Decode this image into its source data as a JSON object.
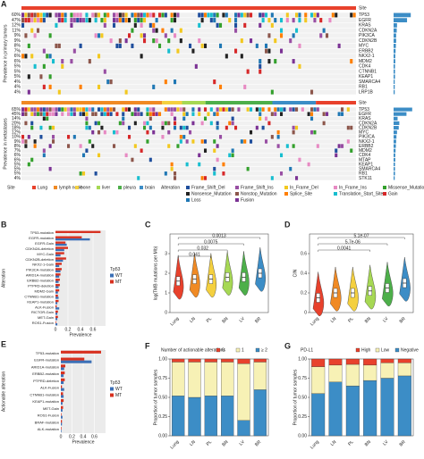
{
  "chart_data": [
    {
      "panel": "A",
      "type": "oncoprint",
      "track_label": "Site",
      "primary_label": "Prevalence in primary tumors",
      "metastasis_label": "Prevalence in metastases",
      "primary": {
        "genes": [
          "TP53",
          "EGFR",
          "KRAS",
          "CDKN2A",
          "PIK3CA",
          "CDKN2B",
          "MYC",
          "ERBB2",
          "NKX2-1",
          "MDM2",
          "CDK4",
          "CTNNB1",
          "KEAP1",
          "SMARCA4",
          "RB1",
          "LRP1B"
        ],
        "values": [
          60,
          47,
          12,
          11,
          9,
          9,
          8,
          7,
          6,
          6,
          5,
          5,
          5,
          4,
          4,
          4
        ],
        "value_labels": [
          "60%",
          "47%",
          "12%",
          "11%",
          "9%",
          "9%",
          "8%",
          "7%",
          "6%",
          "6%",
          "5%",
          "5%",
          "5%",
          "4%",
          "4%",
          "4%"
        ]
      },
      "metastasis": {
        "genes": [
          "TP53",
          "EGFR",
          "KRAS",
          "CDKN2A",
          "CDKN2B",
          "MYC",
          "PIK3CA",
          "NKX2-1",
          "ERBB2",
          "MDM2",
          "CDK4",
          "MTAP",
          "KEAP1",
          "SMARCA4",
          "RB1",
          "STK11"
        ],
        "values": [
          65,
          45,
          14,
          20,
          18,
          12,
          10,
          9,
          8,
          7,
          6,
          6,
          5,
          5,
          5,
          4
        ],
        "value_labels": [
          "65%",
          "45%",
          "14%",
          "20%",
          "18%",
          "12%",
          "10%",
          "9%",
          "8%",
          "7%",
          "6%",
          "6%",
          "5%",
          "5%",
          "5%",
          "4%"
        ]
      },
      "site_legend": {
        "title": "Site",
        "items": [
          {
            "name": "Lung",
            "color": "#e8412c"
          },
          {
            "name": "lymph node",
            "color": "#f08a24"
          },
          {
            "name": "bone",
            "color": "#f4d03f"
          },
          {
            "name": "liver",
            "color": "#a6d854"
          },
          {
            "name": "pleura",
            "color": "#4daf4a"
          },
          {
            "name": "brain",
            "color": "#3c8dc6"
          }
        ]
      },
      "alteration_legend": {
        "title": "Alteration",
        "items": [
          {
            "name": "Frame_Shift_Del",
            "color": "#1f4e9c"
          },
          {
            "name": "Frame_Shift_Ins",
            "color": "#984ea3"
          },
          {
            "name": "In_Frame_Del",
            "color": "#f2c81f"
          },
          {
            "name": "In_Frame_Ins",
            "color": "#e78ac3"
          },
          {
            "name": "Missense_Mutation",
            "color": "#33a02c"
          },
          {
            "name": "Nonsense_Mutation",
            "color": "#222222"
          },
          {
            "name": "Nonstop_Mutation",
            "color": "#8c564b"
          },
          {
            "name": "Splice_Site",
            "color": "#ff7f00"
          },
          {
            "name": "Translation_Start_Site",
            "color": "#17becf"
          },
          {
            "name": "Gain",
            "color": "#d62728"
          },
          {
            "name": "Loss",
            "color": "#1f77b4"
          },
          {
            "name": "Fusion",
            "color": "#7b3294"
          }
        ]
      }
    },
    {
      "panel": "B",
      "type": "hbar",
      "ylabel": "Alteration",
      "xlabel": "Prevalence",
      "legend_title": "Tp53",
      "categories": [
        "TP53-mutation",
        "EGFR-mutation",
        "EGFR-Gain",
        "CDKN2A-deletion",
        "MYC-Gain",
        "CDKN2B-deletion",
        "NKX2-1-Gain",
        "PIK3CA-mutation",
        "ARID1A-mutation",
        "ERBB2-mutation",
        "PTPRD-deletion",
        "MDM2-Gain",
        "CTNNB1-mutation",
        "KEAP1-mutation",
        "ALK-Fusion",
        "RICTOR-Gain",
        "MET-Gain",
        "ROS1-Fusion"
      ],
      "series": [
        {
          "name": "WT",
          "color": "#3b6fb6",
          "values": [
            0,
            0.55,
            0.18,
            0.14,
            0.08,
            0.12,
            0.06,
            0.08,
            0.06,
            0.05,
            0.05,
            0.04,
            0.05,
            0.03,
            0.06,
            0.03,
            0.03,
            0.03
          ]
        },
        {
          "name": "MT",
          "color": "#d7301f",
          "values": [
            0.72,
            0.42,
            0.16,
            0.2,
            0.14,
            0.17,
            0.1,
            0.1,
            0.08,
            0.07,
            0.07,
            0.06,
            0.04,
            0.05,
            0.02,
            0.04,
            0.04,
            0.01
          ]
        }
      ],
      "xlim": [
        0,
        0.8
      ],
      "xticks": [
        0,
        0.2,
        0.4,
        0.6
      ]
    },
    {
      "panel": "C",
      "type": "violin",
      "ylabel": "log(TMB mutations per Mb)",
      "categories": [
        "Lung",
        "LN",
        "PL",
        "BN",
        "LV",
        "BR"
      ],
      "colors": [
        "#e8412c",
        "#f08a24",
        "#f4d03f",
        "#a6d854",
        "#4daf4a",
        "#3c8dc6"
      ],
      "values": [
        1.6,
        1.7,
        1.7,
        1.8,
        1.8,
        2.0
      ],
      "ylim": [
        0,
        4
      ],
      "yticks": [
        0,
        1,
        2,
        3
      ],
      "annotations": [
        "0.0013",
        "0.0075",
        "0.032",
        "0.041"
      ]
    },
    {
      "panel": "D",
      "type": "violin",
      "ylabel": "CIN",
      "categories": [
        "Lung",
        "LN",
        "PL",
        "BN",
        "LV",
        "BR"
      ],
      "colors": [
        "#e8412c",
        "#f08a24",
        "#f4d03f",
        "#a6d854",
        "#4daf4a",
        "#3c8dc6"
      ],
      "values": [
        0.15,
        0.2,
        0.2,
        0.22,
        0.25,
        0.3
      ],
      "ylim": [
        0,
        0.8
      ],
      "yticks": [
        0,
        0.2,
        0.4,
        0.6
      ],
      "annotations": [
        "5.1e-07",
        "5.7e-06",
        "0.0041"
      ]
    },
    {
      "panel": "E",
      "type": "hbar",
      "ylabel": "Actionable alteration",
      "xlabel": "Prevalence",
      "legend_title": "Tp53",
      "categories": [
        "TP53-mutation",
        "EGFR-mutation",
        "ARID1A-mutation",
        "ERBB2-mutation",
        "PTPRD-deletion",
        "ALK-Fusion",
        "CTNNB1-mutation",
        "KEAP1-mutation",
        "MET-Gain",
        "ROS1-Fusion",
        "BRAF-mutation",
        "ALK-mutation"
      ],
      "series": [
        {
          "name": "WT",
          "color": "#3b6fb6",
          "values": [
            0,
            0.55,
            0.06,
            0.05,
            0.05,
            0.06,
            0.05,
            0.03,
            0.03,
            0.03,
            0.02,
            0.01
          ]
        },
        {
          "name": "MT",
          "color": "#d7301f",
          "values": [
            0.72,
            0.42,
            0.08,
            0.07,
            0.07,
            0.02,
            0.04,
            0.05,
            0.04,
            0.01,
            0.02,
            0.01
          ]
        }
      ],
      "xlim": [
        0,
        0.8
      ],
      "xticks": [
        0,
        0.2,
        0.4,
        0.6
      ]
    },
    {
      "panel": "F",
      "type": "stacked",
      "ylabel": "Proportion of tumor samples",
      "legend_title": "Number of actionable alterations",
      "categories": [
        "Lung",
        "LN",
        "PL",
        "BN",
        "LV",
        "BR"
      ],
      "series": [
        {
          "name": "0",
          "color": "#e8412c",
          "values": [
            0.04,
            0.04,
            0.04,
            0.04,
            0.06,
            0.04
          ]
        },
        {
          "name": "1",
          "color": "#f7f1b5",
          "values": [
            0.44,
            0.46,
            0.44,
            0.44,
            0.74,
            0.36
          ]
        },
        {
          "name": "≥ 2",
          "color": "#3c8dc6",
          "values": [
            0.52,
            0.5,
            0.52,
            0.52,
            0.2,
            0.6
          ]
        }
      ],
      "ylim": [
        0,
        1
      ],
      "yticks": [
        {
          "value": 0,
          "label": "0.00"
        },
        {
          "value": 0.25,
          "label": "0.25"
        },
        {
          "value": 0.5,
          "label": "0.50"
        },
        {
          "value": 0.75,
          "label": "0.75"
        },
        {
          "value": 1,
          "label": "1.00"
        }
      ]
    },
    {
      "panel": "G",
      "type": "stacked",
      "ylabel": "Proportion of tumor samples",
      "legend_title": "PD-L1",
      "categories": [
        "Lung",
        "LN",
        "PL",
        "BN",
        "LV",
        "BR"
      ],
      "series": [
        {
          "name": "High",
          "color": "#e8412c",
          "values": [
            0.1,
            0.08,
            0.07,
            0.08,
            0.05,
            0.05
          ]
        },
        {
          "name": "Low",
          "color": "#f7f1b5",
          "values": [
            0.35,
            0.22,
            0.28,
            0.2,
            0.2,
            0.17
          ]
        },
        {
          "name": "Negative",
          "color": "#3c8dc6",
          "values": [
            0.55,
            0.7,
            0.65,
            0.72,
            0.75,
            0.78
          ]
        }
      ],
      "ylim": [
        0,
        1
      ],
      "yticks": [
        {
          "value": 0,
          "label": "0.00"
        },
        {
          "value": 0.25,
          "label": "0.25"
        },
        {
          "value": 0.5,
          "label": "0.50"
        },
        {
          "value": 0.75,
          "label": "0.75"
        },
        {
          "value": 1,
          "label": "1.00"
        }
      ]
    }
  ]
}
